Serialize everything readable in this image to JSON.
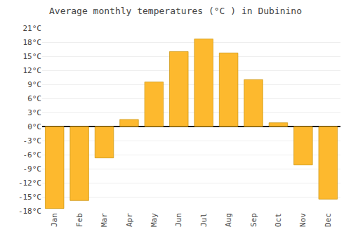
{
  "chart_data": {
    "type": "bar",
    "title": "Average monthly temperatures (°C ) in Dubinino",
    "categories": [
      "Jan",
      "Feb",
      "Mar",
      "Apr",
      "May",
      "Jun",
      "Jul",
      "Aug",
      "Sep",
      "Oct",
      "Nov",
      "Dec"
    ],
    "values": [
      -17.5,
      -15.8,
      -6.7,
      1.5,
      9.5,
      16.0,
      18.7,
      15.7,
      10.0,
      0.8,
      -8.2,
      -15.5
    ],
    "color": "#FDB92E",
    "ylim": [
      -18,
      21
    ],
    "yticks": [
      {
        "value": -18,
        "label": "-18°C"
      },
      {
        "value": -15,
        "label": "-15°C"
      },
      {
        "value": -12,
        "label": "-12°C"
      },
      {
        "value": -9,
        "label": "-9°C"
      },
      {
        "value": -6,
        "label": "-6°C"
      },
      {
        "value": -3,
        "label": "-3°C"
      },
      {
        "value": 0,
        "label": "0°C"
      },
      {
        "value": 3,
        "label": "3°C"
      },
      {
        "value": 6,
        "label": "6°C"
      },
      {
        "value": 9,
        "label": "9°C"
      },
      {
        "value": 12,
        "label": "12°C"
      },
      {
        "value": 15,
        "label": "15°C"
      },
      {
        "value": 18,
        "label": "18°C"
      },
      {
        "value": 21,
        "label": "21°C"
      }
    ],
    "grid": true
  }
}
